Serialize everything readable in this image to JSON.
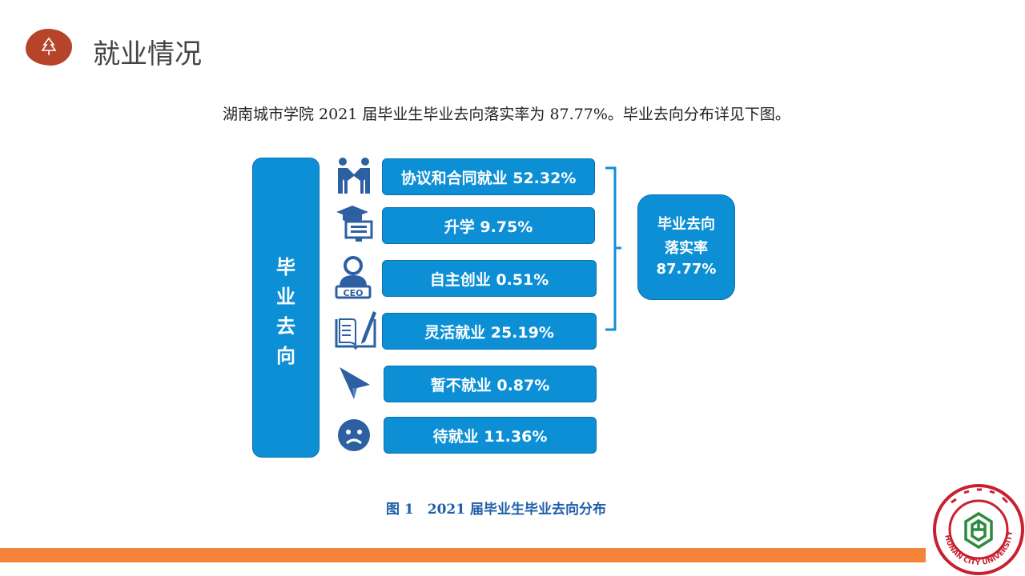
{
  "header": {
    "title": "就业情况",
    "icon": "tree-icon",
    "accent": "#b5442b"
  },
  "intro_text": "湖南城市学院 2021 届毕业生毕业去向落实率为 87.77%。毕业去向分布详见下图。",
  "diagram": {
    "category": {
      "chars": [
        "毕",
        "业",
        "去",
        "向"
      ]
    },
    "items": [
      {
        "label": "协议和合同就业 52.32%",
        "icon": "handshake-icon"
      },
      {
        "label": "升学 9.75%",
        "icon": "graduation-cap-icon"
      },
      {
        "label": "自主创业 0.51%",
        "icon": "ceo-icon"
      },
      {
        "label": "灵活就业 25.19%",
        "icon": "book-pen-icon"
      },
      {
        "label": "暂不就业 0.87%",
        "icon": "paper-plane-icon"
      },
      {
        "label": "待就业 11.36%",
        "icon": "sad-face-icon"
      }
    ],
    "summary": {
      "line1": "毕业去向",
      "line2": "落实率",
      "line3": "87.77%"
    },
    "caption": "图 1　2021 届毕业生毕业去向分布",
    "color": "#0d8fd6"
  },
  "footer": {
    "bar_color": "#f5843a",
    "logo_text": "HUNAN CITY UNIVERSITY"
  }
}
